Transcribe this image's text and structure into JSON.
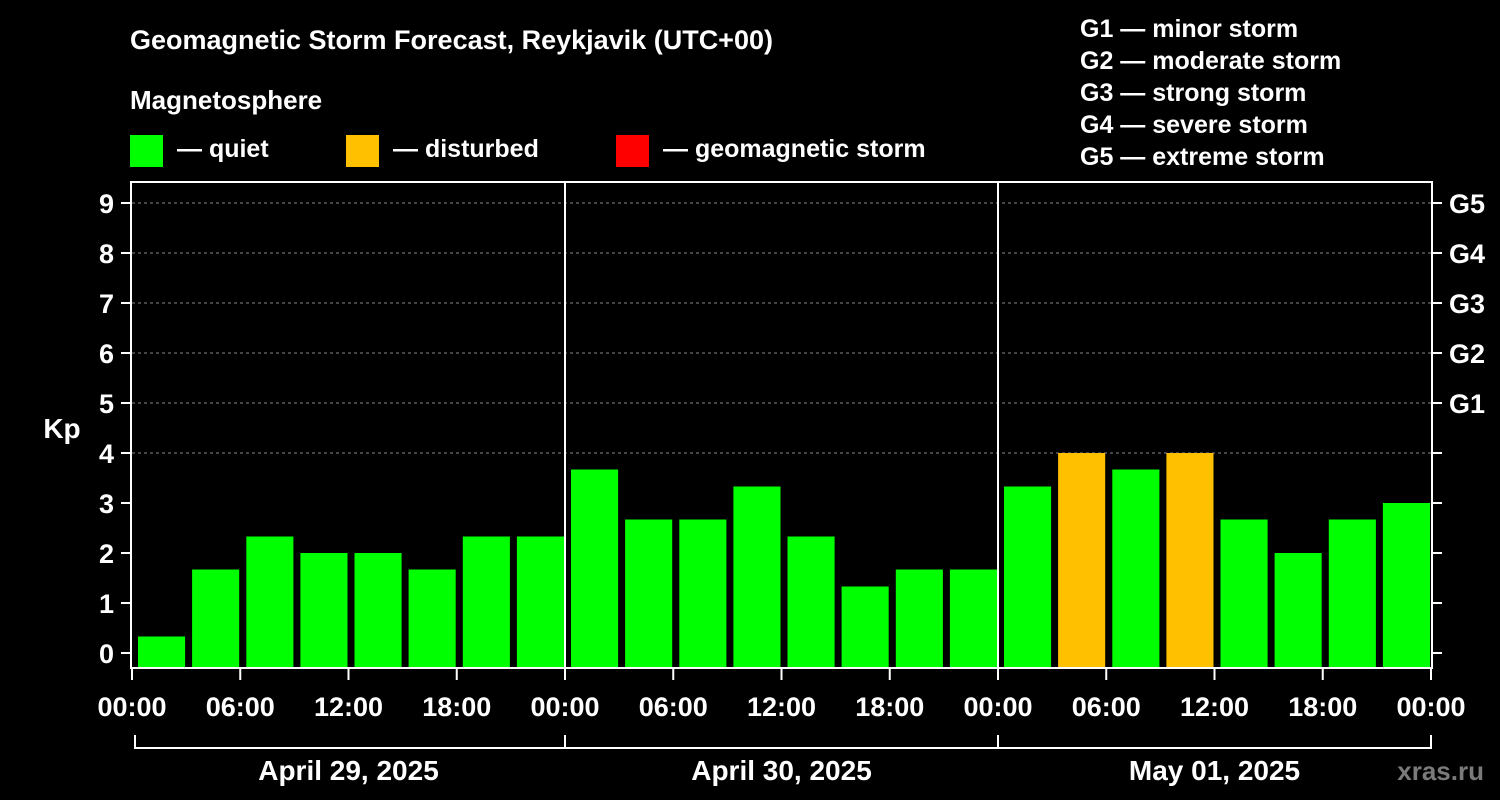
{
  "chart_data": {
    "type": "bar",
    "title": "Geomagnetic Storm Forecast, Reykjavik (UTC+00)",
    "ylabel": "Kp",
    "ylim": [
      -0.3,
      9.4
    ],
    "y_ticks": [
      "0",
      "1",
      "2",
      "3",
      "4",
      "5",
      "6",
      "7",
      "8",
      "9"
    ],
    "grid": true,
    "legend": {
      "title": "Magnetosphere",
      "items": [
        {
          "label": "— quiet",
          "color": "#00ff00"
        },
        {
          "label": "— disturbed",
          "color": "#ffc000"
        },
        {
          "label": "— geomagnetic storm",
          "color": "#ff0000"
        }
      ]
    },
    "g_scale_legend": [
      "G1 — minor storm",
      "G2 — moderate storm",
      "G3 — strong storm",
      "G4 — severe storm",
      "G5 — extreme storm"
    ],
    "g_axis": [
      {
        "label": "G1",
        "kp": 5
      },
      {
        "label": "G2",
        "kp": 6
      },
      {
        "label": "G3",
        "kp": 7
      },
      {
        "label": "G4",
        "kp": 8
      },
      {
        "label": "G5",
        "kp": 9
      }
    ],
    "x_tick_labels": [
      "00:00",
      "06:00",
      "12:00",
      "18:00",
      "00:00",
      "06:00",
      "12:00",
      "18:00",
      "00:00",
      "06:00",
      "12:00",
      "18:00",
      "00:00"
    ],
    "days": [
      "April 29, 2025",
      "April 30, 2025",
      "May 01, 2025"
    ],
    "series": [
      {
        "values": [
          0.33,
          1.67,
          2.33,
          2.0,
          2.0,
          1.67,
          2.33,
          2.33,
          3.67,
          2.67,
          2.67,
          3.33,
          2.33,
          1.33,
          1.67,
          1.67,
          3.33,
          4.0,
          3.67,
          4.0,
          2.67,
          2.0,
          2.67,
          3.0
        ],
        "levels": [
          "quiet",
          "quiet",
          "quiet",
          "quiet",
          "quiet",
          "quiet",
          "quiet",
          "quiet",
          "quiet",
          "quiet",
          "quiet",
          "quiet",
          "quiet",
          "quiet",
          "quiet",
          "quiet",
          "quiet",
          "disturbed",
          "quiet",
          "disturbed",
          "quiet",
          "quiet",
          "quiet",
          "quiet"
        ]
      }
    ],
    "colors": {
      "quiet": "#00ff00",
      "disturbed": "#ffc000",
      "storm": "#ff0000",
      "grid": "#888888",
      "axis": "#ffffff"
    }
  },
  "watermark": "xras.ru"
}
